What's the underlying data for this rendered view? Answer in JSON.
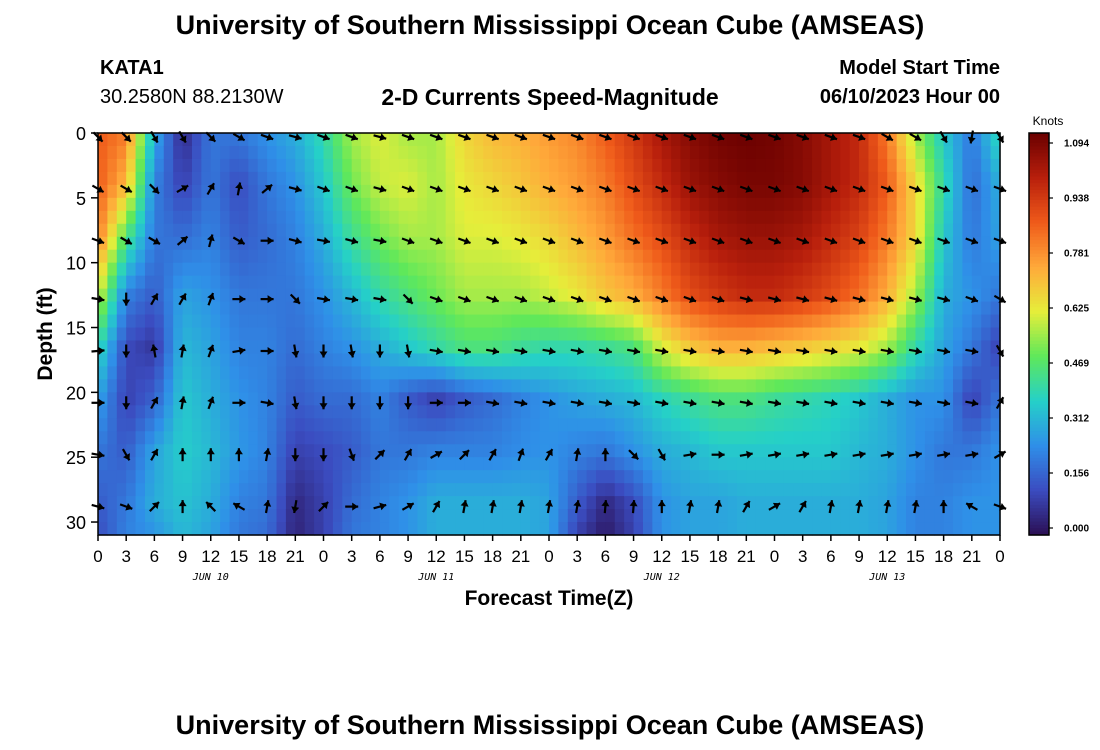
{
  "header": {
    "title": "University of Southern Mississippi Ocean Cube (AMSEAS)",
    "station": "KATA1",
    "coords": "30.2580N  88.2130W",
    "subtitle": "2-D Currents Speed-Magnitude",
    "model_label": "Model Start Time",
    "model_time": "06/10/2023 Hour 00"
  },
  "footer": {
    "title": "University of Southern Mississippi Ocean Cube (AMSEAS)"
  },
  "chart_data": {
    "type": "heatmap",
    "title": "2-D Currents Speed-Magnitude",
    "xlabel": "Forecast Time(Z)",
    "ylabel": "Depth (ft)",
    "x_hours": [
      0,
      3,
      6,
      9,
      12,
      15,
      18,
      21,
      24,
      27,
      30,
      33,
      36,
      39,
      42,
      45,
      48,
      51,
      54,
      57,
      60,
      63,
      66,
      69,
      72,
      75,
      78,
      81,
      84,
      87,
      90,
      93,
      96
    ],
    "x_tick_labels": [
      "0",
      "3",
      "6",
      "9",
      "12",
      "15",
      "18",
      "21",
      "0",
      "3",
      "6",
      "9",
      "12",
      "15",
      "18",
      "21",
      "0",
      "3",
      "6",
      "9",
      "12",
      "15",
      "18",
      "21",
      "0",
      "3",
      "6",
      "9",
      "12",
      "15",
      "18",
      "21",
      "0"
    ],
    "day_labels": [
      {
        "label": "JUN 10",
        "hour": 12
      },
      {
        "label": "JUN 11",
        "hour": 36
      },
      {
        "label": "JUN 12",
        "hour": 60
      },
      {
        "label": "JUN 13",
        "hour": 84
      }
    ],
    "y_ticks": [
      0,
      5,
      10,
      15,
      20,
      25,
      30
    ],
    "ylim": [
      0,
      31
    ],
    "colorbar": {
      "unit": "Knots",
      "ticks": [
        "1.094",
        "0.938",
        "0.781",
        "0.625",
        "0.469",
        "0.312",
        "0.156",
        "0.000"
      ],
      "range": [
        0,
        1.094
      ],
      "colors": [
        "#2b0f54",
        "#3b4cc0",
        "#2f8fe8",
        "#25d0c8",
        "#5fe85a",
        "#e6ee3a",
        "#ffa93a",
        "#ef5a1a",
        "#b81f0c",
        "#6a0000"
      ]
    },
    "vector_depths": [
      0,
      4,
      8,
      12.5,
      16.5,
      20.5,
      24.5,
      28.5
    ],
    "speed_profiles_knots": {
      "depths": [
        0,
        4,
        8,
        12.5,
        16.5,
        20.5,
        24.5,
        28.5,
        31
      ],
      "by_hour": {
        "0": [
          0.85,
          0.85,
          0.8,
          0.6,
          0.4,
          0.28,
          0.2,
          0.15,
          0.12
        ],
        "3": [
          0.8,
          0.7,
          0.45,
          0.22,
          0.12,
          0.1,
          0.15,
          0.2,
          0.22
        ],
        "6": [
          0.3,
          0.22,
          0.2,
          0.15,
          0.08,
          0.16,
          0.28,
          0.3,
          0.25
        ],
        "9": [
          0.05,
          0.1,
          0.18,
          0.28,
          0.32,
          0.35,
          0.36,
          0.34,
          0.32
        ],
        "12": [
          0.2,
          0.2,
          0.22,
          0.25,
          0.28,
          0.3,
          0.32,
          0.3,
          0.28
        ],
        "15": [
          0.2,
          0.12,
          0.15,
          0.2,
          0.22,
          0.25,
          0.26,
          0.22,
          0.2
        ],
        "18": [
          0.25,
          0.2,
          0.18,
          0.2,
          0.22,
          0.22,
          0.22,
          0.2,
          0.18
        ],
        "21": [
          0.3,
          0.25,
          0.22,
          0.2,
          0.18,
          0.15,
          0.1,
          0.05,
          0.04
        ],
        "24": [
          0.4,
          0.35,
          0.3,
          0.25,
          0.22,
          0.18,
          0.12,
          0.1,
          0.1
        ],
        "27": [
          0.55,
          0.5,
          0.42,
          0.32,
          0.25,
          0.18,
          0.15,
          0.18,
          0.2
        ],
        "30": [
          0.6,
          0.58,
          0.5,
          0.4,
          0.3,
          0.22,
          0.2,
          0.22,
          0.22
        ],
        "33": [
          0.55,
          0.6,
          0.55,
          0.45,
          0.35,
          0.15,
          0.2,
          0.25,
          0.25
        ],
        "36": [
          0.55,
          0.55,
          0.55,
          0.5,
          0.4,
          0.1,
          0.22,
          0.3,
          0.3
        ],
        "39": [
          0.65,
          0.62,
          0.6,
          0.55,
          0.45,
          0.15,
          0.22,
          0.3,
          0.3
        ],
        "42": [
          0.7,
          0.65,
          0.6,
          0.55,
          0.45,
          0.18,
          0.22,
          0.3,
          0.3
        ],
        "45": [
          0.72,
          0.68,
          0.62,
          0.55,
          0.42,
          0.22,
          0.24,
          0.3,
          0.3
        ],
        "48": [
          0.75,
          0.72,
          0.65,
          0.58,
          0.4,
          0.25,
          0.25,
          0.28,
          0.28
        ],
        "51": [
          0.78,
          0.75,
          0.7,
          0.62,
          0.4,
          0.28,
          0.22,
          0.15,
          0.1
        ],
        "54": [
          0.85,
          0.8,
          0.75,
          0.68,
          0.42,
          0.3,
          0.2,
          0.05,
          0.02
        ],
        "57": [
          0.92,
          0.88,
          0.82,
          0.72,
          0.45,
          0.32,
          0.25,
          0.12,
          0.1
        ],
        "60": [
          1.0,
          0.95,
          0.88,
          0.8,
          0.6,
          0.38,
          0.3,
          0.25,
          0.25
        ],
        "63": [
          1.05,
          1.02,
          0.95,
          0.88,
          0.68,
          0.42,
          0.32,
          0.28,
          0.28
        ],
        "66": [
          1.08,
          1.05,
          1.0,
          0.92,
          0.72,
          0.45,
          0.35,
          0.28,
          0.28
        ],
        "69": [
          1.09,
          1.07,
          1.02,
          0.95,
          0.72,
          0.45,
          0.35,
          0.3,
          0.3
        ],
        "72": [
          1.08,
          1.07,
          1.02,
          0.95,
          0.7,
          0.42,
          0.35,
          0.3,
          0.3
        ],
        "75": [
          1.05,
          1.05,
          1.0,
          0.92,
          0.68,
          0.4,
          0.35,
          0.3,
          0.3
        ],
        "78": [
          1.0,
          1.0,
          0.95,
          0.88,
          0.65,
          0.38,
          0.35,
          0.3,
          0.3
        ],
        "81": [
          0.95,
          0.95,
          0.9,
          0.82,
          0.62,
          0.35,
          0.32,
          0.3,
          0.3
        ],
        "84": [
          0.8,
          0.85,
          0.8,
          0.72,
          0.55,
          0.3,
          0.3,
          0.28,
          0.28
        ],
        "87": [
          0.55,
          0.65,
          0.65,
          0.55,
          0.4,
          0.25,
          0.25,
          0.22,
          0.22
        ],
        "90": [
          0.35,
          0.4,
          0.35,
          0.3,
          0.28,
          0.25,
          0.2,
          0.22,
          0.22
        ],
        "93": [
          0.2,
          0.18,
          0.2,
          0.25,
          0.2,
          0.1,
          0.2,
          0.25,
          0.25
        ],
        "96": [
          0.4,
          0.3,
          0.28,
          0.2,
          0.1,
          0.2,
          0.25,
          0.25,
          0.25
        ]
      }
    },
    "vector_directions_deg_from_east": {
      "0": [
        -45,
        -30,
        -20,
        -10,
        5,
        0,
        -10,
        -15
      ],
      "3": [
        -45,
        -30,
        -30,
        -90,
        -90,
        -90,
        -60,
        -20
      ],
      "6": [
        -60,
        -45,
        -30,
        60,
        100,
        60,
        60,
        45
      ],
      "9": [
        -60,
        30,
        40,
        60,
        80,
        80,
        90,
        90
      ],
      "12": [
        -45,
        60,
        75,
        70,
        70,
        70,
        90,
        135
      ],
      "15": [
        -30,
        80,
        -30,
        0,
        10,
        0,
        90,
        150
      ],
      "18": [
        -20,
        40,
        0,
        0,
        0,
        -10,
        80,
        80
      ],
      "21": [
        -15,
        -15,
        -15,
        -45,
        -80,
        -80,
        -90,
        -100
      ],
      "24": [
        -20,
        -20,
        -10,
        -10,
        -90,
        -90,
        -90,
        45
      ],
      "27": [
        -20,
        -20,
        -15,
        -10,
        -80,
        -90,
        -70,
        0
      ],
      "30": [
        -15,
        -15,
        -10,
        -10,
        -90,
        -90,
        45,
        15
      ],
      "33": [
        -20,
        -20,
        -20,
        -45,
        -80,
        -90,
        60,
        30
      ],
      "36": [
        -20,
        -20,
        -20,
        -20,
        -10,
        0,
        30,
        60
      ],
      "39": [
        -20,
        -20,
        -20,
        -20,
        -10,
        0,
        45,
        80
      ],
      "42": [
        -20,
        -20,
        -20,
        -20,
        -10,
        -10,
        60,
        80
      ],
      "45": [
        -20,
        -20,
        -20,
        -20,
        -10,
        -10,
        70,
        80
      ],
      "48": [
        -20,
        -20,
        -20,
        -20,
        -10,
        -10,
        60,
        80
      ],
      "51": [
        -20,
        -20,
        -20,
        -20,
        -10,
        -10,
        80,
        80
      ],
      "54": [
        -20,
        -20,
        -20,
        -20,
        -10,
        -10,
        90,
        85
      ],
      "57": [
        -20,
        -20,
        -20,
        -20,
        -10,
        -10,
        -45,
        85
      ],
      "60": [
        -20,
        -20,
        -20,
        -20,
        -10,
        -10,
        -60,
        90
      ],
      "63": [
        -20,
        -20,
        -20,
        -20,
        -10,
        -10,
        10,
        80
      ],
      "66": [
        -20,
        -20,
        -20,
        -20,
        -10,
        -10,
        0,
        80
      ],
      "69": [
        -20,
        -20,
        -20,
        -15,
        -10,
        -10,
        10,
        60
      ],
      "72": [
        -20,
        -20,
        -20,
        -15,
        -10,
        -10,
        10,
        30
      ],
      "75": [
        -20,
        -20,
        -20,
        -15,
        -10,
        -10,
        10,
        60
      ],
      "78": [
        -20,
        -20,
        -20,
        -15,
        -10,
        -10,
        10,
        80
      ],
      "81": [
        -20,
        -20,
        -20,
        -15,
        -10,
        -10,
        10,
        80
      ],
      "84": [
        -30,
        -20,
        -20,
        -15,
        -10,
        -10,
        10,
        80
      ],
      "87": [
        -30,
        -20,
        -20,
        -15,
        -10,
        -10,
        10,
        80
      ],
      "90": [
        -60,
        -20,
        -20,
        -15,
        -10,
        -10,
        10,
        90
      ],
      "93": [
        -100,
        -20,
        -20,
        -20,
        -10,
        -10,
        10,
        150
      ],
      "96": [
        -60,
        -20,
        -20,
        -30,
        -60,
        60,
        30,
        -20
      ]
    }
  }
}
